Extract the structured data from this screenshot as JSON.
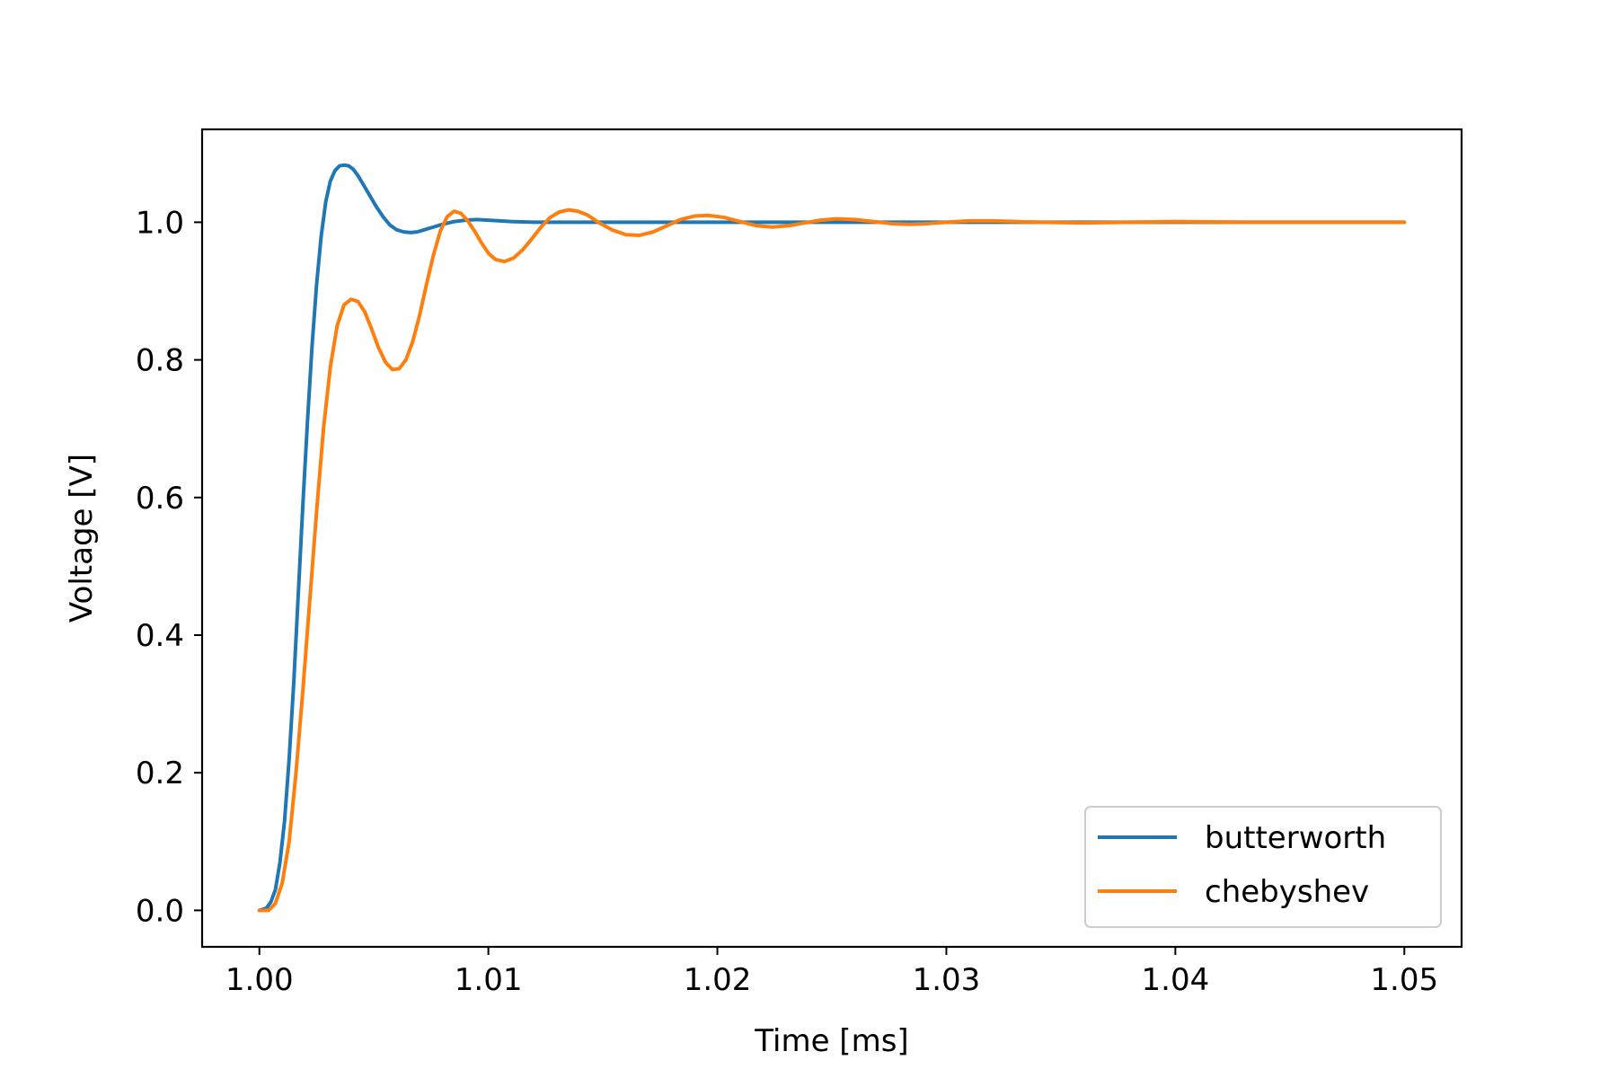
{
  "chart_data": {
    "type": "line",
    "title": "",
    "xlabel": "Time [ms]",
    "ylabel": "Voltage [V]",
    "xlim": [
      0.9975,
      1.0525
    ],
    "ylim": [
      -0.053,
      1.135
    ],
    "x_ticks": [
      1.0,
      1.01,
      1.02,
      1.03,
      1.04,
      1.05
    ],
    "x_tick_labels": [
      "1.00",
      "1.01",
      "1.02",
      "1.03",
      "1.04",
      "1.05"
    ],
    "y_ticks": [
      0.0,
      0.2,
      0.4,
      0.6,
      0.8,
      1.0
    ],
    "y_tick_labels": [
      "0.0",
      "0.2",
      "0.4",
      "0.6",
      "0.8",
      "1.0"
    ],
    "grid": false,
    "legend_position": "lower-right",
    "series": [
      {
        "name": "butterworth",
        "color": "#1f77b4",
        "x": [
          1.0,
          1.0003,
          1.0005,
          1.0007,
          1.0009,
          1.0011,
          1.0013,
          1.0015,
          1.0017,
          1.0019,
          1.0021,
          1.0023,
          1.0025,
          1.0027,
          1.0029,
          1.0031,
          1.0033,
          1.0035,
          1.0037,
          1.0039,
          1.0041,
          1.0043,
          1.0045,
          1.0048,
          1.0051,
          1.0054,
          1.0057,
          1.006,
          1.0063,
          1.0066,
          1.0069,
          1.0072,
          1.0076,
          1.008,
          1.0085,
          1.009,
          1.0095,
          1.01,
          1.011,
          1.012,
          1.013,
          1.015,
          1.018,
          1.022,
          1.027,
          1.032,
          1.038,
          1.044,
          1.05
        ],
        "y": [
          0.0,
          0.003,
          0.012,
          0.03,
          0.07,
          0.13,
          0.22,
          0.33,
          0.46,
          0.59,
          0.71,
          0.82,
          0.91,
          0.98,
          1.03,
          1.06,
          1.075,
          1.082,
          1.083,
          1.082,
          1.077,
          1.068,
          1.057,
          1.04,
          1.023,
          1.008,
          0.996,
          0.989,
          0.986,
          0.985,
          0.986,
          0.989,
          0.993,
          0.997,
          1.001,
          1.003,
          1.004,
          1.003,
          1.001,
          1.0,
          1.0,
          1.0,
          1.0,
          1.0,
          1.0,
          1.0,
          1.0,
          1.0,
          1.0
        ]
      },
      {
        "name": "chebyshev",
        "color": "#ff7f0e",
        "x": [
          1.0,
          1.0004,
          1.0007,
          1.001,
          1.0013,
          1.0016,
          1.0019,
          1.0022,
          1.0025,
          1.0028,
          1.0031,
          1.0034,
          1.0037,
          1.004,
          1.0043,
          1.0046,
          1.0049,
          1.0052,
          1.0055,
          1.0058,
          1.0061,
          1.0064,
          1.0067,
          1.007,
          1.0073,
          1.0076,
          1.0079,
          1.0082,
          1.0085,
          1.0088,
          1.0091,
          1.0094,
          1.0097,
          1.01,
          1.0103,
          1.0107,
          1.0111,
          1.0115,
          1.0119,
          1.0123,
          1.0127,
          1.0131,
          1.0135,
          1.0139,
          1.0143,
          1.0148,
          1.0154,
          1.016,
          1.0166,
          1.0172,
          1.0178,
          1.0184,
          1.019,
          1.0196,
          1.0203,
          1.021,
          1.0217,
          1.0224,
          1.0231,
          1.0238,
          1.0245,
          1.0252,
          1.026,
          1.0268,
          1.0276,
          1.0284,
          1.0292,
          1.03,
          1.031,
          1.032,
          1.033,
          1.034,
          1.036,
          1.038,
          1.04,
          1.043,
          1.046,
          1.05
        ],
        "y": [
          0.0,
          0.0,
          0.01,
          0.04,
          0.1,
          0.2,
          0.32,
          0.45,
          0.58,
          0.7,
          0.79,
          0.85,
          0.88,
          0.888,
          0.885,
          0.87,
          0.845,
          0.818,
          0.797,
          0.786,
          0.787,
          0.8,
          0.827,
          0.865,
          0.91,
          0.952,
          0.987,
          1.008,
          1.016,
          1.013,
          1.002,
          0.987,
          0.97,
          0.955,
          0.946,
          0.943,
          0.948,
          0.96,
          0.976,
          0.993,
          1.007,
          1.015,
          1.018,
          1.016,
          1.011,
          1.0,
          0.989,
          0.982,
          0.981,
          0.986,
          0.995,
          1.004,
          1.009,
          1.01,
          1.007,
          1.001,
          0.995,
          0.993,
          0.995,
          0.999,
          1.003,
          1.005,
          1.004,
          1.001,
          0.998,
          0.997,
          0.998,
          1.0,
          1.002,
          1.002,
          1.001,
          1.0,
          0.999,
          1.0,
          1.001,
          1.0,
          1.0,
          1.0
        ]
      }
    ]
  }
}
